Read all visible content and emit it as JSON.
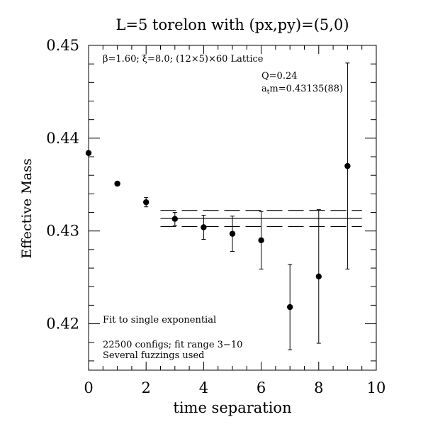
{
  "chart_data": {
    "type": "scatter",
    "title": "L=5 torelon with (px,py)=(5,0)",
    "xlabel": "time separation",
    "ylabel": "Effective Mass",
    "xlim": [
      0,
      10
    ],
    "ylim": [
      0.415,
      0.45
    ],
    "x_ticks": [
      0,
      2,
      4,
      6,
      8,
      10
    ],
    "x_tick_labels": [
      "0",
      "2",
      "4",
      "6",
      "8",
      "10"
    ],
    "y_ticks": [
      0.42,
      0.43,
      0.44,
      0.45
    ],
    "y_tick_labels": [
      "0.42",
      "0.43",
      "0.44",
      "0.45"
    ],
    "points": [
      {
        "x": 0,
        "y": 0.4384,
        "err": 0.0002
      },
      {
        "x": 1,
        "y": 0.4351,
        "err": 0.0002
      },
      {
        "x": 2,
        "y": 0.4331,
        "err": 0.0005
      },
      {
        "x": 3,
        "y": 0.4313,
        "err": 0.0007
      },
      {
        "x": 4,
        "y": 0.4304,
        "err": 0.0013
      },
      {
        "x": 5,
        "y": 0.4297,
        "err": 0.0019
      },
      {
        "x": 6,
        "y": 0.429,
        "err": 0.0031
      },
      {
        "x": 7,
        "y": 0.4218,
        "err": 0.0046
      },
      {
        "x": 8,
        "y": 0.4251,
        "err": 0.0072
      },
      {
        "x": 9,
        "y": 0.437,
        "err": 0.0111
      }
    ],
    "fit": {
      "x_range": [
        2.5,
        9.5
      ],
      "value": 0.43135,
      "upper": 0.43222,
      "lower": 0.43048
    },
    "annotations": {
      "lattice": "β=1.60; ξ=8.0; (12×5)×60 Lattice",
      "q": "Q=0.24",
      "mass_prefix": "a",
      "mass_sub": "t",
      "mass_value": "m=0.43135(88)",
      "fit_type": "Fit to single exponential",
      "configs": "22500 configs; fit range 3−10",
      "fuzzings": "Several fuzzings used"
    }
  }
}
